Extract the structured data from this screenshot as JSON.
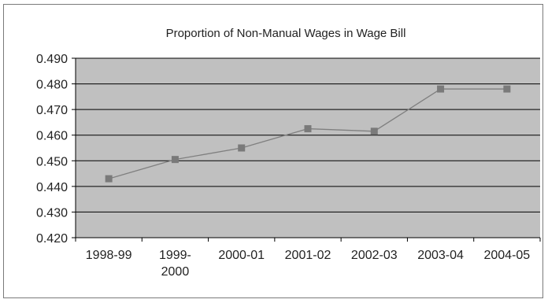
{
  "chart_data": {
    "type": "line",
    "title": "Proportion of Non-Manual Wages in Wage Bill",
    "xlabel": "",
    "ylabel": "",
    "categories": [
      "1998-99",
      "1999-2000",
      "2000-01",
      "2001-02",
      "2002-03",
      "2003-04",
      "2004-05"
    ],
    "category_lines": [
      [
        "1998-99"
      ],
      [
        "1999-",
        "2000"
      ],
      [
        "2000-01"
      ],
      [
        "2001-02"
      ],
      [
        "2002-03"
      ],
      [
        "2003-04"
      ],
      [
        "2004-05"
      ]
    ],
    "series": [
      {
        "values": [
          0.443,
          0.4505,
          0.455,
          0.4625,
          0.4615,
          0.478,
          0.478
        ]
      }
    ],
    "ylim": [
      0.42,
      0.49
    ],
    "yticks": [
      "0.490",
      "0.480",
      "0.470",
      "0.460",
      "0.450",
      "0.440",
      "0.430",
      "0.420"
    ],
    "grid": true,
    "legend": "none",
    "colors": {
      "plot_background": "#c0c0c0",
      "gridline": "#000000",
      "line": "#7f7f7f",
      "marker": "#7a7a7a",
      "frame": "#7a7a7a"
    }
  }
}
